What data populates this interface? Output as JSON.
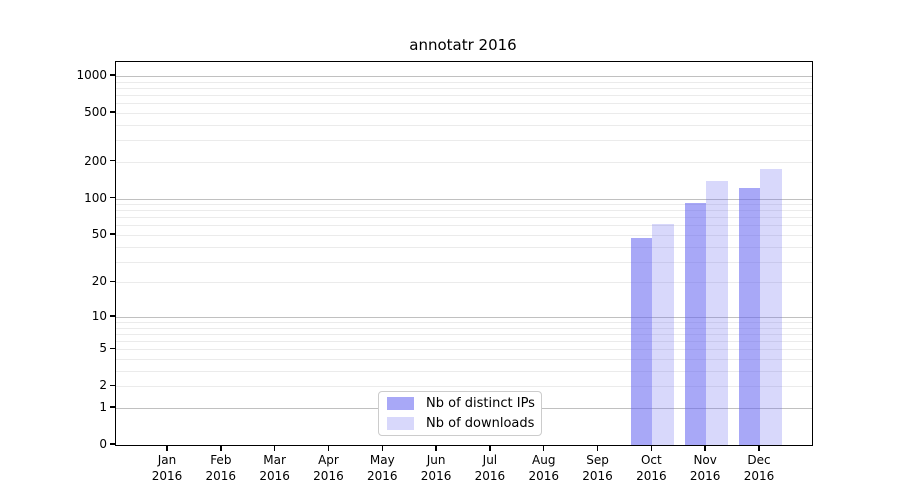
{
  "chart_data": {
    "type": "bar",
    "title": "annotatr 2016",
    "x_months": [
      "Jan",
      "Feb",
      "Mar",
      "Apr",
      "May",
      "Jun",
      "Jul",
      "Aug",
      "Sep",
      "Oct",
      "Nov",
      "Dec"
    ],
    "x_year": "2016",
    "series": [
      {
        "name": "Nb of distinct IPs",
        "color": "rgba(100,100,240,0.56)",
        "values": [
          0,
          0,
          0,
          0,
          0,
          0,
          0,
          0,
          0,
          47,
          92,
          122
        ]
      },
      {
        "name": "Nb of downloads",
        "color": "rgba(100,100,240,0.25)",
        "values": [
          0,
          0,
          0,
          0,
          0,
          0,
          0,
          0,
          0,
          62,
          140,
          175
        ]
      }
    ],
    "yscale": "log1p",
    "ylim": [
      0,
      1300
    ],
    "yticks": [
      0,
      1,
      2,
      5,
      10,
      20,
      50,
      100,
      200,
      500,
      1000
    ],
    "gridlines": {
      "major": [
        1,
        10,
        100,
        1000
      ],
      "minor": [
        2,
        3,
        4,
        5,
        6,
        7,
        8,
        9,
        20,
        30,
        40,
        50,
        60,
        70,
        80,
        90,
        200,
        300,
        400,
        500,
        600,
        700,
        800,
        900
      ],
      "major_color": "#c0c0c0",
      "minor_color": "#ebebeb"
    },
    "legend_position": "lower center"
  }
}
